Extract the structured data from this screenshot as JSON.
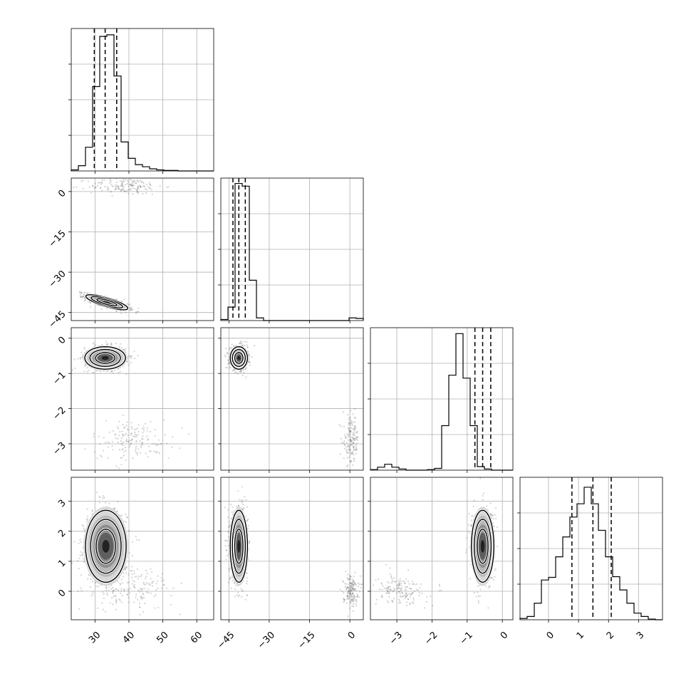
{
  "chart_data": {
    "type": "corner",
    "parameters": [
      {
        "ticks": [
          30,
          40,
          50,
          60
        ],
        "range": [
          23,
          65
        ]
      },
      {
        "ticks": [
          -45,
          -30,
          -15,
          0
        ],
        "range": [
          -48,
          5
        ]
      },
      {
        "ticks": [
          -3,
          -2,
          -1,
          0
        ],
        "range": [
          -3.75,
          0.3
        ]
      },
      {
        "ticks": [
          0,
          1,
          2,
          3
        ],
        "range": [
          -0.95,
          3.8
        ]
      }
    ],
    "quantiles": [
      [
        29.8,
        33.0,
        36.4
      ],
      [
        -43.5,
        -41.3,
        -38.9
      ],
      [
        -0.78,
        -0.56,
        -0.33
      ],
      [
        0.78,
        1.48,
        2.09
      ]
    ],
    "histograms": [
      {
        "edges_start": 23,
        "edges_end": 65,
        "bins": 20,
        "counts": [
          2,
          10,
          45,
          160,
          255,
          258,
          180,
          55,
          24,
          12,
          8,
          4,
          2,
          1,
          1,
          0,
          0,
          0,
          0,
          0
        ],
        "ymax": 270
      },
      {
        "edges_start": -48,
        "edges_end": 5,
        "bins": 20,
        "counts": [
          2,
          25,
          255,
          250,
          75,
          5,
          0,
          0,
          0,
          0,
          0,
          0,
          0,
          0,
          0,
          0,
          0,
          0,
          5,
          4
        ],
        "ymax": 265
      },
      {
        "edges_start": -3.75,
        "edges_end": 0.3,
        "bins": 20,
        "counts": [
          1,
          5,
          10,
          5,
          2,
          0,
          0,
          0,
          1,
          3,
          75,
          160,
          230,
          155,
          75,
          6,
          2,
          0,
          0,
          0
        ],
        "ymax": 240
      },
      {
        "edges_start": -0.95,
        "edges_end": 3.8,
        "bins": 20,
        "counts": [
          2,
          5,
          25,
          60,
          64,
          95,
          125,
          155,
          175,
          200,
          175,
          135,
          95,
          65,
          45,
          25,
          10,
          5,
          1,
          0
        ],
        "ymax": 215
      }
    ],
    "panels_2d": [
      {
        "x_param": 0,
        "y_param": 1,
        "main": {
          "cx": 33.5,
          "cy": -41.2,
          "sx": 3.1,
          "sy": 1.4,
          "rho": -0.8
        },
        "secondary": {
          "cx": 39,
          "cy": 2.0,
          "sx": 5.5,
          "sy": 1.6
        }
      },
      {
        "x_param": 0,
        "y_param": 2,
        "main": {
          "cx": 33.0,
          "cy": -0.56,
          "sx": 3.0,
          "sy": 0.16,
          "rho": 0.0
        },
        "secondary": {
          "cx": 41,
          "cy": -2.9,
          "sx": 6.0,
          "sy": 0.3
        }
      },
      {
        "x_param": 1,
        "y_param": 2,
        "main": {
          "cx": -41.3,
          "cy": -0.56,
          "sx": 1.6,
          "sy": 0.16,
          "rho": 0.0
        },
        "secondary": {
          "cx": 0.5,
          "cy": -2.9,
          "sx": 1.5,
          "sy": 0.35
        }
      },
      {
        "x_param": 0,
        "y_param": 3,
        "main": {
          "cx": 33.2,
          "cy": 1.5,
          "sx": 3.0,
          "sy": 0.6,
          "rho": 0.0
        },
        "secondary": {
          "cx": 41,
          "cy": 0.1,
          "sx": 6.0,
          "sy": 0.35
        }
      },
      {
        "x_param": 1,
        "y_param": 3,
        "main": {
          "cx": -41.3,
          "cy": 1.5,
          "sx": 1.6,
          "sy": 0.6,
          "rho": 0.0
        },
        "secondary": {
          "cx": 0.3,
          "cy": 0.05,
          "sx": 1.4,
          "sy": 0.25
        }
      },
      {
        "x_param": 2,
        "y_param": 3,
        "main": {
          "cx": -0.56,
          "cy": 1.5,
          "sx": 0.16,
          "sy": 0.6,
          "rho": 0.0
        },
        "secondary": {
          "cx": -2.9,
          "cy": 0.05,
          "sx": 0.35,
          "sy": 0.25
        }
      }
    ]
  }
}
